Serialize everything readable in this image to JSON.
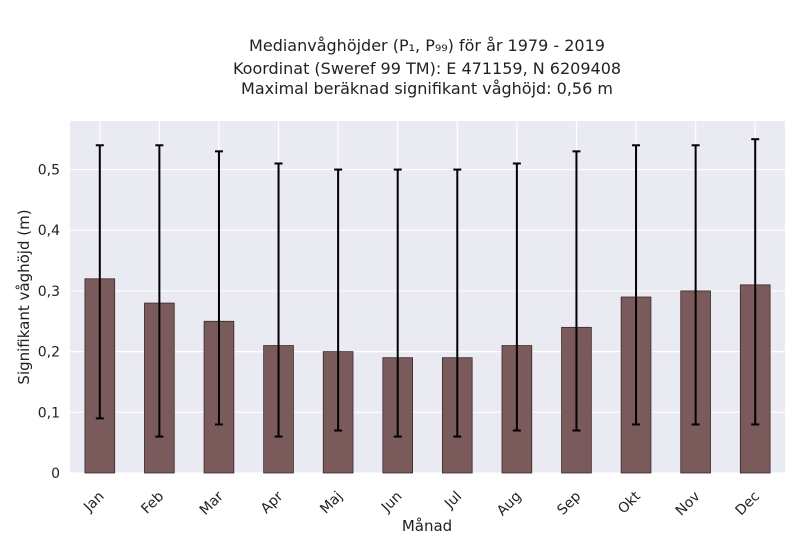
{
  "chart_data": {
    "type": "bar",
    "title_lines": [
      "Medianvåghöjder (P₁, P₉₉) för år 1979 - 2019",
      "Koordinat (Sweref 99 TM): E 471159, N 6209408",
      "Maximal beräknad signifikant våghöjd: 0,56 m"
    ],
    "xlabel": "Månad",
    "ylabel": "Signifikant våghöjd (m)",
    "categories": [
      "Jan",
      "Feb",
      "Mar",
      "Apr",
      "Maj",
      "Jun",
      "Jul",
      "Aug",
      "Sep",
      "Okt",
      "Nov",
      "Dec"
    ],
    "series": [
      {
        "values": [
          0.32,
          0.28,
          0.25,
          0.21,
          0.2,
          0.19,
          0.19,
          0.21,
          0.24,
          0.29,
          0.3,
          0.31
        ],
        "lower": [
          0.09,
          0.06,
          0.08,
          0.06,
          0.07,
          0.06,
          0.06,
          0.07,
          0.07,
          0.08,
          0.08,
          0.08
        ],
        "upper": [
          0.54,
          0.54,
          0.53,
          0.51,
          0.5,
          0.5,
          0.5,
          0.51,
          0.53,
          0.54,
          0.54,
          0.55
        ]
      }
    ],
    "ylim": [
      0,
      0.58
    ],
    "yticks": [
      0,
      0.1,
      0.2,
      0.3,
      0.4,
      0.5
    ],
    "ytick_labels": [
      "0",
      "0,1",
      "0,2",
      "0,3",
      "0,4",
      "0,5"
    ],
    "grid": true,
    "colors": {
      "bar": "#7b5a5c",
      "bar_edge": "#3a2a2b",
      "errorbar": "#000000",
      "plot_background": "#eaeaf2",
      "grid": "#ffffff"
    }
  }
}
